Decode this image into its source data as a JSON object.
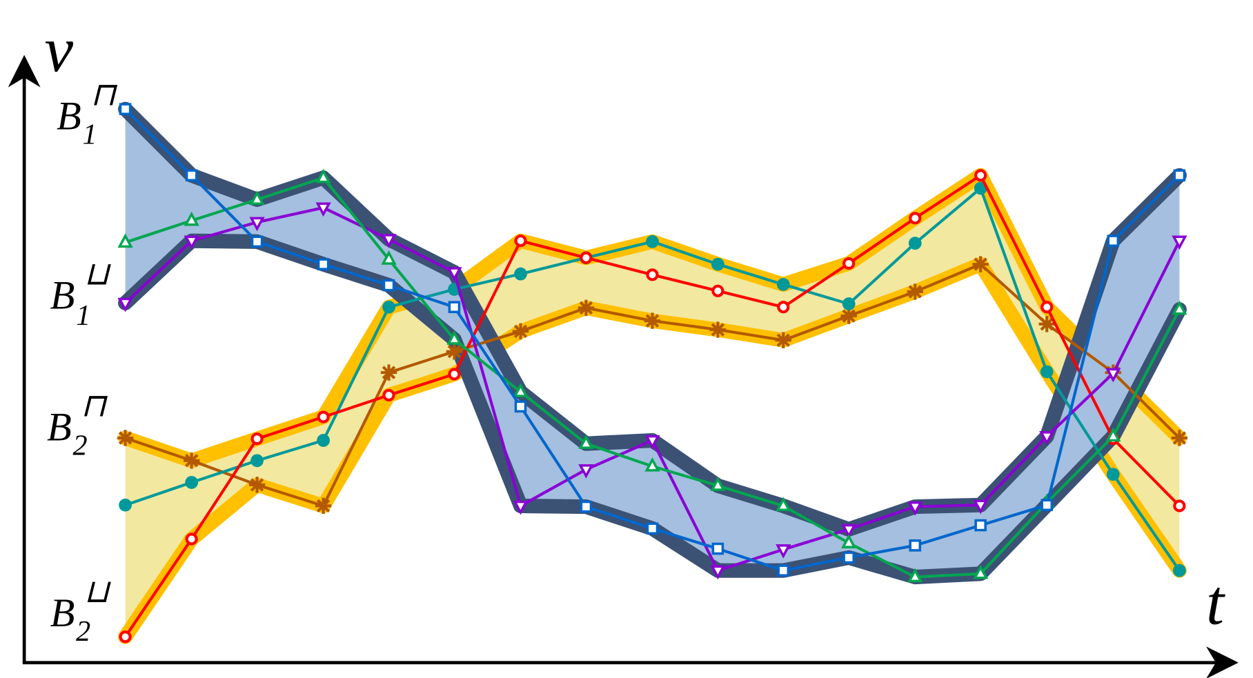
{
  "axes": {
    "y_label": "v",
    "x_label": "t"
  },
  "bands": [
    {
      "base": "B",
      "sub": "1",
      "sup": "⊓"
    },
    {
      "base": "B",
      "sub": "1",
      "sup": "⊔"
    },
    {
      "base": "B",
      "sub": "2",
      "sup": "⊓"
    },
    {
      "base": "B",
      "sub": "2",
      "sup": "⊔"
    }
  ]
}
